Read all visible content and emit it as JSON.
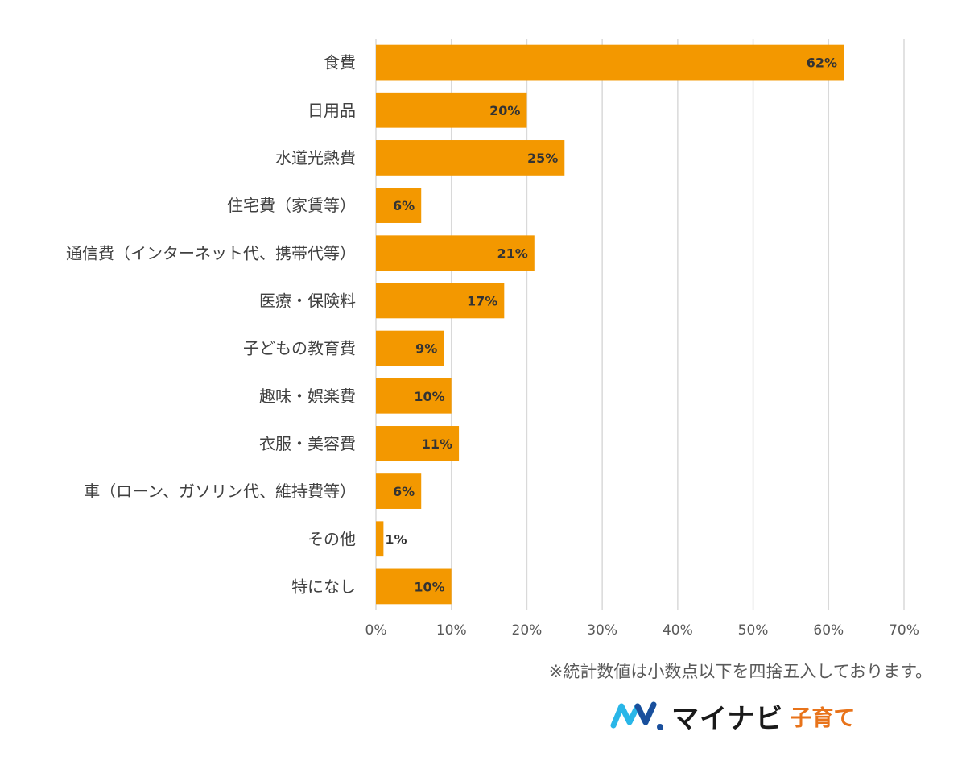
{
  "chart_data": {
    "type": "bar",
    "orientation": "horizontal",
    "categories": [
      "食費",
      "日用品",
      "水道光熱費",
      "住宅費（家賃等）",
      "通信費（インターネット代、携帯代等）",
      "医療・保険料",
      "子どもの教育費",
      "趣味・娯楽費",
      "衣服・美容費",
      "車（ローン、ガソリン代、維持費等）",
      "その他",
      "特になし"
    ],
    "values": [
      62,
      20,
      25,
      6,
      21,
      17,
      9,
      10,
      11,
      6,
      1,
      10
    ],
    "data_labels": [
      "62%",
      "20%",
      "25%",
      "6%",
      "21%",
      "17%",
      "9%",
      "10%",
      "11%",
      "6%",
      "1%",
      "10%"
    ],
    "xlim": [
      0,
      70
    ],
    "xticks": [
      "0%",
      "10%",
      "20%",
      "30%",
      "40%",
      "50%",
      "60%",
      "70%"
    ],
    "grid": "vertical",
    "bar_color": "#F39800",
    "grid_color": "#d9d9d9"
  },
  "footnote": "※統計数値は小数点以下を四捨五入しております。",
  "logo": {
    "brand": "マイナビ",
    "sub": "子育て",
    "mark_color_light": "#29b6e8",
    "mark_color_dark": "#1a4f9c"
  }
}
